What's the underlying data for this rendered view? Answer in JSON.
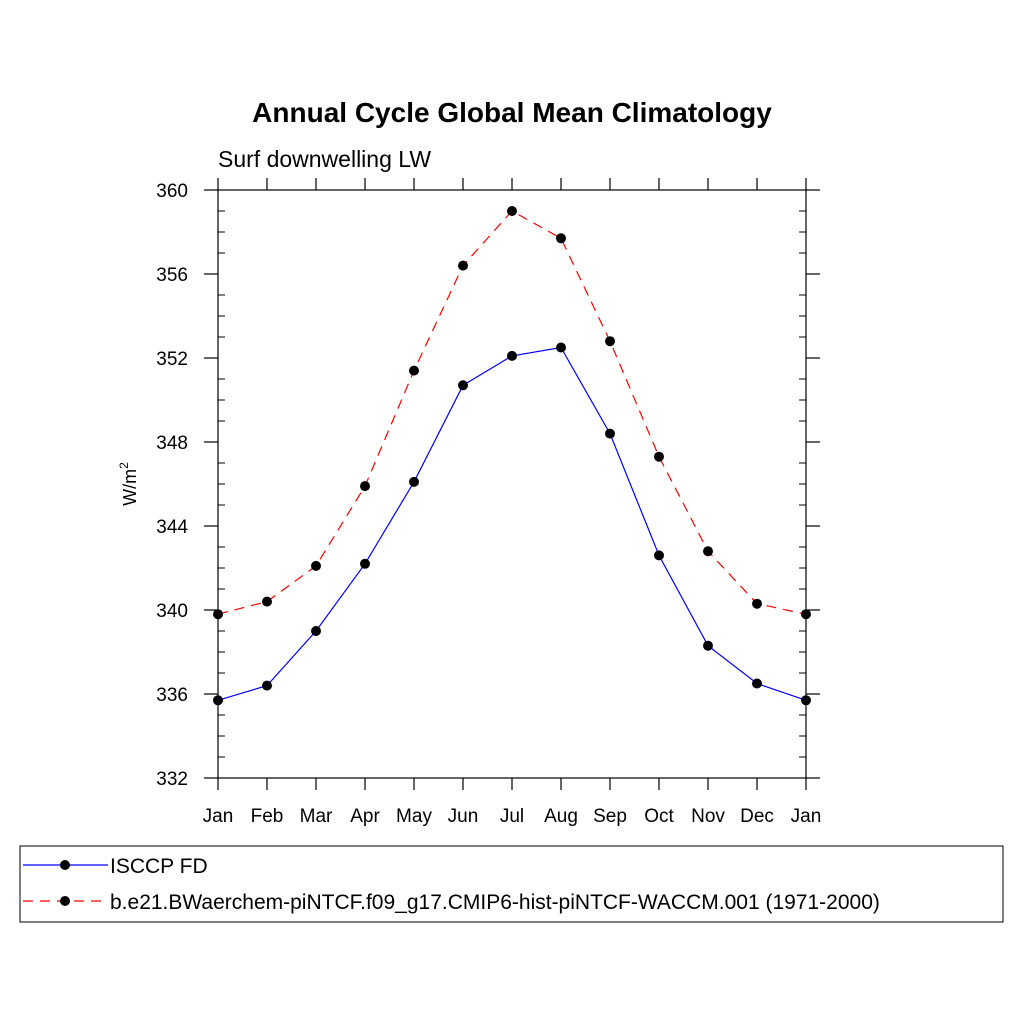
{
  "chart_data": {
    "type": "line",
    "title": "Annual Cycle Global Mean Climatology",
    "subtitle": "Surf downwelling LW",
    "ylabel": "W/m",
    "ylabel_superscript": "2",
    "xlabel": "",
    "ylim": [
      332,
      360
    ],
    "y_ticks": [
      332,
      336,
      340,
      344,
      348,
      352,
      356,
      360
    ],
    "y_tick_labels": [
      "332",
      "336",
      "340",
      "344",
      "348",
      "352",
      "356",
      "360"
    ],
    "categories": [
      "Jan",
      "Feb",
      "Mar",
      "Apr",
      "May",
      "Jun",
      "Jul",
      "Aug",
      "Sep",
      "Oct",
      "Nov",
      "Dec",
      "Jan"
    ],
    "series": [
      {
        "name": "ISCCP FD",
        "color": "#0000ff",
        "dash": "solid",
        "values": [
          335.7,
          336.4,
          339.0,
          342.2,
          346.1,
          350.7,
          352.1,
          352.5,
          348.4,
          342.6,
          338.3,
          336.5,
          335.7
        ]
      },
      {
        "name": "b.e21.BWaerchem-piNTCF.f09_g17.CMIP6-hist-piNTCF-WACCM.001 (1971-2000)",
        "color": "#ff0000",
        "dash": "dashed",
        "values": [
          339.8,
          340.4,
          342.1,
          345.9,
          351.4,
          356.4,
          359.0,
          357.7,
          352.8,
          347.3,
          342.8,
          340.3,
          339.8
        ]
      }
    ],
    "marker_color": "#000000",
    "grid": false,
    "legend_position": "bottom"
  }
}
